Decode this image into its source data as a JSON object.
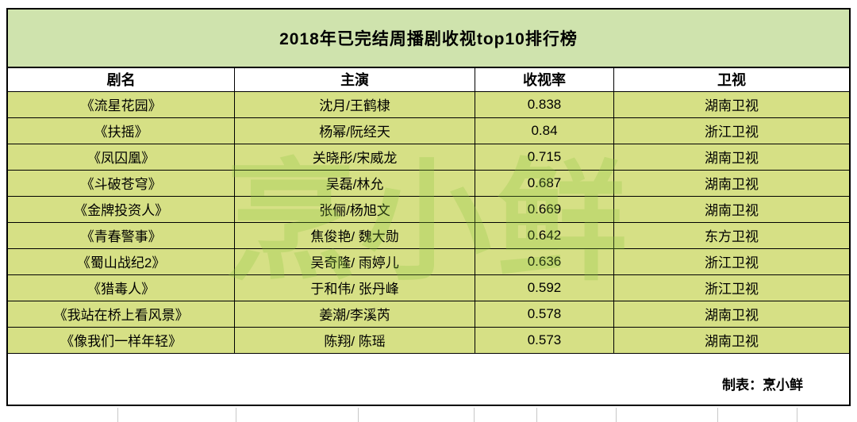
{
  "watermark": "烹小鲜",
  "footer": {
    "credit": "制表：烹小鲜"
  },
  "colors": {
    "title_bg": "#cfe3ad",
    "row_bg": "#d6e085",
    "watermark_green": "#8bc53f",
    "border": "#000000"
  },
  "chart_data": {
    "type": "table",
    "title": "2018年已完结周播剧收视top10排行榜",
    "headers": [
      "剧名",
      "主演",
      "收视率",
      "卫视"
    ],
    "rows": [
      [
        "《流星花园》",
        "沈月/王鹤棣",
        "0.838",
        "湖南卫视"
      ],
      [
        "《扶摇》",
        "杨幂/阮经天",
        "0.84",
        "浙江卫视"
      ],
      [
        "《凤囚凰》",
        "关晓彤/宋威龙",
        "0.715",
        "湖南卫视"
      ],
      [
        "《斗破苍穹》",
        "吴磊/林允",
        "0.687",
        "湖南卫视"
      ],
      [
        "《金牌投资人》",
        "张俪/杨旭文",
        "0.669",
        "湖南卫视"
      ],
      [
        "《青春警事》",
        "焦俊艳/ 魏大勋",
        "0.642",
        "东方卫视"
      ],
      [
        "《蜀山战纪2》",
        "吴奇隆/ 雨婷儿",
        "0.636",
        "浙江卫视"
      ],
      [
        "《猎毒人》",
        "于和伟/ 张丹峰",
        "0.592",
        "浙江卫视"
      ],
      [
        "《我站在桥上看风景》",
        "姜潮/李溪芮",
        "0.578",
        "湖南卫视"
      ],
      [
        "《像我们一样年轻》",
        "陈翔/ 陈瑶",
        "0.573",
        "湖南卫视"
      ]
    ]
  }
}
